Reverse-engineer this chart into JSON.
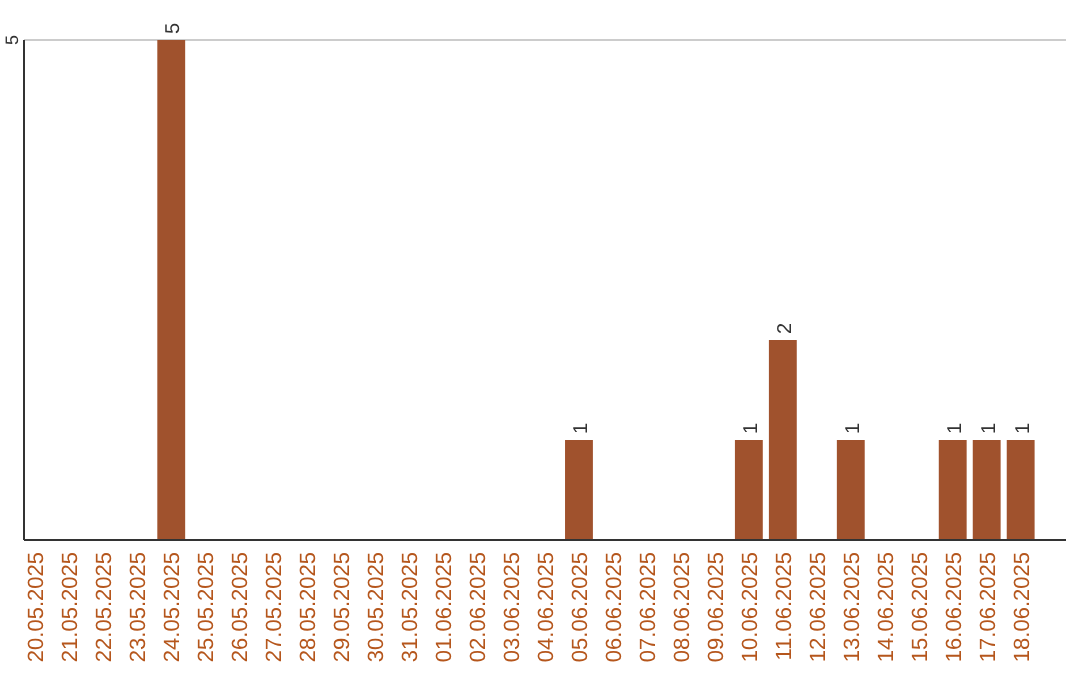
{
  "chart_data": {
    "type": "bar",
    "categories": [
      "20.05.2025",
      "21.05.2025",
      "22.05.2025",
      "23.05.2025",
      "24.05.2025",
      "25.05.2025",
      "26.05.2025",
      "27.05.2025",
      "28.05.2025",
      "29.05.2025",
      "30.05.2025",
      "31.05.2025",
      "01.06.2025",
      "02.06.2025",
      "03.06.2025",
      "04.06.2025",
      "05.06.2025",
      "06.06.2025",
      "07.06.2025",
      "08.06.2025",
      "09.06.2025",
      "10.06.2025",
      "11.06.2025",
      "12.06.2025",
      "13.06.2025",
      "14.06.2025",
      "15.06.2025",
      "16.06.2025",
      "17.06.2025",
      "18.06.2025"
    ],
    "values": [
      0,
      0,
      0,
      0,
      5,
      0,
      0,
      0,
      0,
      0,
      0,
      0,
      0,
      0,
      0,
      0,
      1,
      0,
      0,
      0,
      0,
      1,
      2,
      0,
      1,
      0,
      0,
      1,
      1,
      1
    ],
    "value_labels": [
      null,
      null,
      null,
      null,
      "5",
      null,
      null,
      null,
      null,
      null,
      null,
      null,
      null,
      null,
      null,
      null,
      "1",
      null,
      null,
      null,
      null,
      "1",
      "2",
      null,
      "1",
      null,
      null,
      "1",
      "1",
      "1"
    ],
    "color": "#a0522d",
    "ylim": [
      0,
      5
    ],
    "yticks": [
      5
    ]
  }
}
